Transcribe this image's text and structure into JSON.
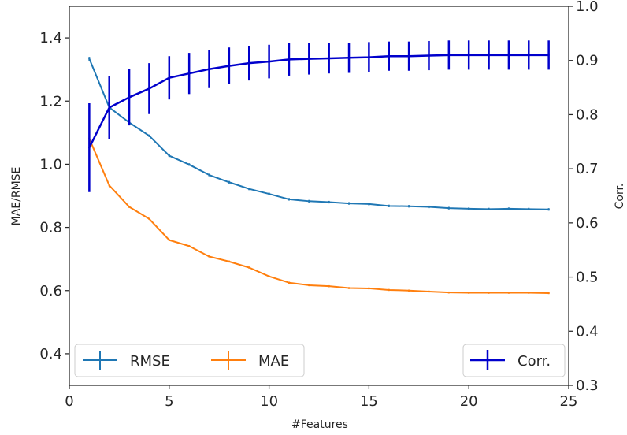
{
  "chart_data": {
    "type": "line",
    "xlabel": "#Features",
    "ylabel_left": "MAE/RMSE",
    "ylabel_right": "Corr.",
    "xlim": [
      0,
      25
    ],
    "ylim_left": [
      0.3,
      1.5
    ],
    "ylim_right": [
      0.3,
      1.0
    ],
    "x_ticks": [
      0,
      5,
      10,
      15,
      20,
      25
    ],
    "y_ticks_left": [
      0.4,
      0.6,
      0.8,
      1.0,
      1.2,
      1.4
    ],
    "y_ticks_right": [
      0.3,
      0.4,
      0.5,
      0.6,
      0.7,
      0.8,
      0.9,
      1.0
    ],
    "x_tick_labels": [
      "0",
      "5",
      "10",
      "15",
      "20",
      "25"
    ],
    "y_tick_labels_left": [
      "0.4",
      "0.6",
      "0.8",
      "1.0",
      "1.2",
      "1.4"
    ],
    "y_tick_labels_right": [
      "0.3",
      "0.4",
      "0.5",
      "0.6",
      "0.7",
      "0.8",
      "0.9",
      "1.0"
    ],
    "grid": false,
    "x": [
      1,
      2,
      3,
      4,
      5,
      6,
      7,
      8,
      9,
      10,
      11,
      12,
      13,
      14,
      15,
      16,
      17,
      18,
      19,
      20,
      21,
      22,
      23,
      24
    ],
    "series": [
      {
        "name": "RMSE",
        "axis": "left",
        "color": "#1f77b4",
        "values": [
          1.334,
          1.18,
          1.132,
          1.09,
          1.027,
          0.999,
          0.966,
          0.943,
          0.922,
          0.906,
          0.889,
          0.883,
          0.88,
          0.876,
          0.874,
          0.868,
          0.867,
          0.865,
          0.861,
          0.859,
          0.858,
          0.859,
          0.858,
          0.857
        ],
        "errors": [
          0.006,
          0.004,
          0.004,
          0.004,
          0.004,
          0.004,
          0.004,
          0.004,
          0.004,
          0.004,
          0.004,
          0.004,
          0.004,
          0.004,
          0.004,
          0.004,
          0.004,
          0.004,
          0.004,
          0.004,
          0.004,
          0.004,
          0.004,
          0.004
        ]
      },
      {
        "name": "MAE",
        "axis": "left",
        "color": "#ff7f0e",
        "values": [
          1.081,
          0.933,
          0.865,
          0.827,
          0.76,
          0.741,
          0.708,
          0.692,
          0.673,
          0.645,
          0.625,
          0.617,
          0.614,
          0.608,
          0.607,
          0.602,
          0.6,
          0.597,
          0.594,
          0.593,
          0.593,
          0.593,
          0.593,
          0.592
        ],
        "errors": [
          0.004,
          0.003,
          0.003,
          0.003,
          0.003,
          0.003,
          0.003,
          0.003,
          0.003,
          0.003,
          0.003,
          0.003,
          0.003,
          0.003,
          0.003,
          0.003,
          0.003,
          0.003,
          0.003,
          0.003,
          0.003,
          0.003,
          0.003,
          0.003
        ]
      },
      {
        "name": "Corr.",
        "axis": "right",
        "color": "#0000cc",
        "values": [
          0.739,
          0.813,
          0.832,
          0.848,
          0.868,
          0.876,
          0.884,
          0.89,
          0.895,
          0.898,
          0.902,
          0.903,
          0.904,
          0.905,
          0.906,
          0.908,
          0.908,
          0.909,
          0.91,
          0.91,
          0.91,
          0.91,
          0.91,
          0.91
        ],
        "errors": [
          0.082,
          0.059,
          0.052,
          0.047,
          0.04,
          0.038,
          0.035,
          0.034,
          0.032,
          0.031,
          0.03,
          0.029,
          0.028,
          0.028,
          0.028,
          0.027,
          0.027,
          0.027,
          0.027,
          0.027,
          0.027,
          0.027,
          0.027,
          0.027
        ]
      }
    ],
    "legend_left": {
      "placement": "lower-left",
      "entries": [
        "RMSE",
        "MAE"
      ]
    },
    "legend_right": {
      "placement": "lower-right",
      "entries": [
        "Corr."
      ]
    },
    "colors": {
      "axis": "#262626",
      "right_label": "#0000cc",
      "legend_border": "#cccccc"
    }
  }
}
